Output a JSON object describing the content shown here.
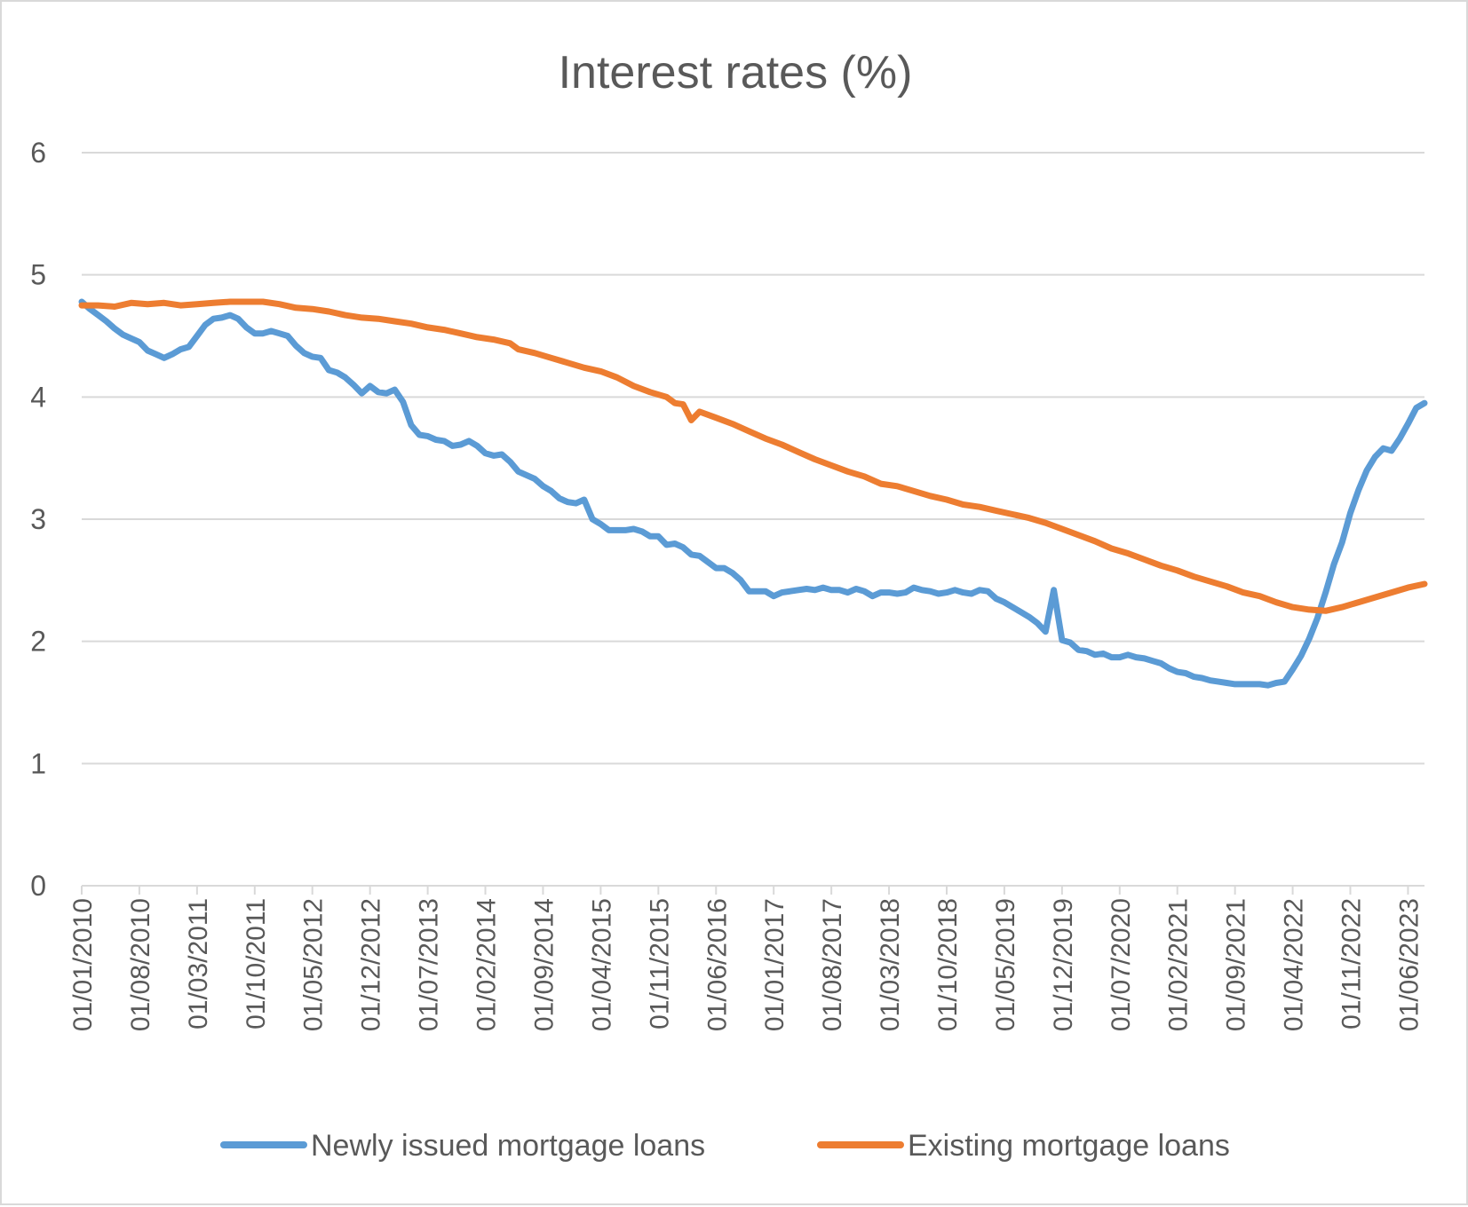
{
  "chart_data": {
    "type": "line",
    "title": "Interest rates (%)",
    "xlabel": "",
    "ylabel": "",
    "ylim": [
      0,
      6
    ],
    "yticks": [
      0,
      1,
      2,
      3,
      4,
      5,
      6
    ],
    "x_range": [
      "2010-01",
      "2023-08"
    ],
    "x_tick_labels": [
      "01/01/2010",
      "01/08/2010",
      "01/03/2011",
      "01/10/2011",
      "01/05/2012",
      "01/12/2012",
      "01/07/2013",
      "01/02/2014",
      "01/09/2014",
      "01/04/2015",
      "01/11/2015",
      "01/06/2016",
      "01/01/2017",
      "01/08/2017",
      "01/03/2018",
      "01/10/2018",
      "01/05/2019",
      "01/12/2019",
      "01/07/2020",
      "01/02/2021",
      "01/09/2021",
      "01/04/2022",
      "01/11/2022",
      "01/06/2023"
    ],
    "grid": "horizontal",
    "legend_position": "bottom",
    "series": [
      {
        "name": "Newly issued mortgage loans",
        "color": "#5b9bd5",
        "points": [
          [
            "2010-01",
            4.78
          ],
          [
            "2010-02",
            4.72
          ],
          [
            "2010-03",
            4.67
          ],
          [
            "2010-04",
            4.62
          ],
          [
            "2010-05",
            4.56
          ],
          [
            "2010-06",
            4.51
          ],
          [
            "2010-07",
            4.48
          ],
          [
            "2010-08",
            4.45
          ],
          [
            "2010-09",
            4.38
          ],
          [
            "2010-10",
            4.35
          ],
          [
            "2010-11",
            4.32
          ],
          [
            "2010-12",
            4.35
          ],
          [
            "2011-01",
            4.39
          ],
          [
            "2011-02",
            4.41
          ],
          [
            "2011-03",
            4.5
          ],
          [
            "2011-04",
            4.59
          ],
          [
            "2011-05",
            4.64
          ],
          [
            "2011-06",
            4.65
          ],
          [
            "2011-07",
            4.67
          ],
          [
            "2011-08",
            4.64
          ],
          [
            "2011-09",
            4.57
          ],
          [
            "2011-10",
            4.52
          ],
          [
            "2011-11",
            4.52
          ],
          [
            "2011-12",
            4.54
          ],
          [
            "2012-01",
            4.52
          ],
          [
            "2012-02",
            4.5
          ],
          [
            "2012-03",
            4.42
          ],
          [
            "2012-04",
            4.36
          ],
          [
            "2012-05",
            4.33
          ],
          [
            "2012-06",
            4.32
          ],
          [
            "2012-07",
            4.22
          ],
          [
            "2012-08",
            4.2
          ],
          [
            "2012-09",
            4.16
          ],
          [
            "2012-10",
            4.1
          ],
          [
            "2012-11",
            4.03
          ],
          [
            "2012-12",
            4.09
          ],
          [
            "2013-01",
            4.04
          ],
          [
            "2013-02",
            4.03
          ],
          [
            "2013-03",
            4.06
          ],
          [
            "2013-04",
            3.96
          ],
          [
            "2013-05",
            3.77
          ],
          [
            "2013-06",
            3.69
          ],
          [
            "2013-07",
            3.68
          ],
          [
            "2013-08",
            3.65
          ],
          [
            "2013-09",
            3.64
          ],
          [
            "2013-10",
            3.6
          ],
          [
            "2013-11",
            3.61
          ],
          [
            "2013-12",
            3.64
          ],
          [
            "2014-01",
            3.6
          ],
          [
            "2014-02",
            3.54
          ],
          [
            "2014-03",
            3.52
          ],
          [
            "2014-04",
            3.53
          ],
          [
            "2014-05",
            3.47
          ],
          [
            "2014-06",
            3.39
          ],
          [
            "2014-07",
            3.36
          ],
          [
            "2014-08",
            3.33
          ],
          [
            "2014-09",
            3.27
          ],
          [
            "2014-10",
            3.23
          ],
          [
            "2014-11",
            3.17
          ],
          [
            "2014-12",
            3.14
          ],
          [
            "2015-01",
            3.13
          ],
          [
            "2015-02",
            3.16
          ],
          [
            "2015-03",
            3.0
          ],
          [
            "2015-04",
            2.96
          ],
          [
            "2015-05",
            2.91
          ],
          [
            "2015-06",
            2.91
          ],
          [
            "2015-07",
            2.91
          ],
          [
            "2015-08",
            2.92
          ],
          [
            "2015-09",
            2.9
          ],
          [
            "2015-10",
            2.86
          ],
          [
            "2015-11",
            2.86
          ],
          [
            "2015-12",
            2.79
          ],
          [
            "2016-01",
            2.8
          ],
          [
            "2016-02",
            2.77
          ],
          [
            "2016-03",
            2.71
          ],
          [
            "2016-04",
            2.7
          ],
          [
            "2016-05",
            2.65
          ],
          [
            "2016-06",
            2.6
          ],
          [
            "2016-07",
            2.6
          ],
          [
            "2016-08",
            2.56
          ],
          [
            "2016-09",
            2.5
          ],
          [
            "2016-10",
            2.41
          ],
          [
            "2016-11",
            2.41
          ],
          [
            "2016-12",
            2.41
          ],
          [
            "2017-01",
            2.37
          ],
          [
            "2017-02",
            2.4
          ],
          [
            "2017-03",
            2.41
          ],
          [
            "2017-04",
            2.42
          ],
          [
            "2017-05",
            2.43
          ],
          [
            "2017-06",
            2.42
          ],
          [
            "2017-07",
            2.44
          ],
          [
            "2017-08",
            2.42
          ],
          [
            "2017-09",
            2.42
          ],
          [
            "2017-10",
            2.4
          ],
          [
            "2017-11",
            2.43
          ],
          [
            "2017-12",
            2.41
          ],
          [
            "2018-01",
            2.37
          ],
          [
            "2018-02",
            2.4
          ],
          [
            "2018-03",
            2.4
          ],
          [
            "2018-04",
            2.39
          ],
          [
            "2018-05",
            2.4
          ],
          [
            "2018-06",
            2.44
          ],
          [
            "2018-07",
            2.42
          ],
          [
            "2018-08",
            2.41
          ],
          [
            "2018-09",
            2.39
          ],
          [
            "2018-10",
            2.4
          ],
          [
            "2018-11",
            2.42
          ],
          [
            "2018-12",
            2.4
          ],
          [
            "2019-01",
            2.39
          ],
          [
            "2019-02",
            2.42
          ],
          [
            "2019-03",
            2.41
          ],
          [
            "2019-04",
            2.35
          ],
          [
            "2019-05",
            2.32
          ],
          [
            "2019-06",
            2.28
          ],
          [
            "2019-07",
            2.24
          ],
          [
            "2019-08",
            2.2
          ],
          [
            "2019-09",
            2.15
          ],
          [
            "2019-10",
            2.08
          ],
          [
            "2019-11",
            2.42
          ],
          [
            "2019-12",
            2.01
          ],
          [
            "2020-01",
            1.99
          ],
          [
            "2020-02",
            1.93
          ],
          [
            "2020-03",
            1.92
          ],
          [
            "2020-04",
            1.89
          ],
          [
            "2020-05",
            1.9
          ],
          [
            "2020-06",
            1.87
          ],
          [
            "2020-07",
            1.87
          ],
          [
            "2020-08",
            1.89
          ],
          [
            "2020-09",
            1.87
          ],
          [
            "2020-10",
            1.86
          ],
          [
            "2020-11",
            1.84
          ],
          [
            "2020-12",
            1.82
          ],
          [
            "2021-01",
            1.78
          ],
          [
            "2021-02",
            1.75
          ],
          [
            "2021-03",
            1.74
          ],
          [
            "2021-04",
            1.71
          ],
          [
            "2021-05",
            1.7
          ],
          [
            "2021-06",
            1.68
          ],
          [
            "2021-07",
            1.67
          ],
          [
            "2021-08",
            1.66
          ],
          [
            "2021-09",
            1.65
          ],
          [
            "2021-10",
            1.65
          ],
          [
            "2021-11",
            1.65
          ],
          [
            "2021-12",
            1.65
          ],
          [
            "2022-01",
            1.64
          ],
          [
            "2022-02",
            1.66
          ],
          [
            "2022-03",
            1.67
          ],
          [
            "2022-04",
            1.77
          ],
          [
            "2022-05",
            1.88
          ],
          [
            "2022-06",
            2.02
          ],
          [
            "2022-07",
            2.19
          ],
          [
            "2022-08",
            2.4
          ],
          [
            "2022-09",
            2.63
          ],
          [
            "2022-10",
            2.81
          ],
          [
            "2022-11",
            3.05
          ],
          [
            "2022-12",
            3.24
          ],
          [
            "2023-01",
            3.4
          ],
          [
            "2023-02",
            3.51
          ],
          [
            "2023-03",
            3.58
          ],
          [
            "2023-04",
            3.56
          ],
          [
            "2023-05",
            3.66
          ],
          [
            "2023-06",
            3.78
          ],
          [
            "2023-07",
            3.91
          ],
          [
            "2023-08",
            3.95
          ]
        ]
      },
      {
        "name": "Existing mortgage loans",
        "color": "#ed7d31",
        "points": [
          [
            "2010-01",
            4.75
          ],
          [
            "2010-03",
            4.75
          ],
          [
            "2010-05",
            4.74
          ],
          [
            "2010-07",
            4.77
          ],
          [
            "2010-09",
            4.76
          ],
          [
            "2010-11",
            4.77
          ],
          [
            "2011-01",
            4.75
          ],
          [
            "2011-03",
            4.76
          ],
          [
            "2011-05",
            4.77
          ],
          [
            "2011-07",
            4.78
          ],
          [
            "2011-09",
            4.78
          ],
          [
            "2011-11",
            4.78
          ],
          [
            "2012-01",
            4.76
          ],
          [
            "2012-03",
            4.73
          ],
          [
            "2012-05",
            4.72
          ],
          [
            "2012-07",
            4.7
          ],
          [
            "2012-09",
            4.67
          ],
          [
            "2012-11",
            4.65
          ],
          [
            "2013-01",
            4.64
          ],
          [
            "2013-03",
            4.62
          ],
          [
            "2013-05",
            4.6
          ],
          [
            "2013-07",
            4.57
          ],
          [
            "2013-09",
            4.55
          ],
          [
            "2013-11",
            4.52
          ],
          [
            "2014-01",
            4.49
          ],
          [
            "2014-03",
            4.47
          ],
          [
            "2014-05",
            4.44
          ],
          [
            "2014-06",
            4.39
          ],
          [
            "2014-08",
            4.36
          ],
          [
            "2014-10",
            4.32
          ],
          [
            "2014-12",
            4.28
          ],
          [
            "2015-02",
            4.24
          ],
          [
            "2015-04",
            4.21
          ],
          [
            "2015-06",
            4.16
          ],
          [
            "2015-08",
            4.09
          ],
          [
            "2015-10",
            4.04
          ],
          [
            "2015-12",
            4.0
          ],
          [
            "2016-01",
            3.95
          ],
          [
            "2016-02",
            3.94
          ],
          [
            "2016-03",
            3.81
          ],
          [
            "2016-04",
            3.88
          ],
          [
            "2016-06",
            3.83
          ],
          [
            "2016-08",
            3.78
          ],
          [
            "2016-10",
            3.72
          ],
          [
            "2016-12",
            3.66
          ],
          [
            "2017-02",
            3.61
          ],
          [
            "2017-04",
            3.55
          ],
          [
            "2017-06",
            3.49
          ],
          [
            "2017-08",
            3.44
          ],
          [
            "2017-10",
            3.39
          ],
          [
            "2017-12",
            3.35
          ],
          [
            "2018-02",
            3.29
          ],
          [
            "2018-04",
            3.27
          ],
          [
            "2018-06",
            3.23
          ],
          [
            "2018-08",
            3.19
          ],
          [
            "2018-10",
            3.16
          ],
          [
            "2018-12",
            3.12
          ],
          [
            "2019-02",
            3.1
          ],
          [
            "2019-04",
            3.07
          ],
          [
            "2019-06",
            3.04
          ],
          [
            "2019-08",
            3.01
          ],
          [
            "2019-10",
            2.97
          ],
          [
            "2019-12",
            2.92
          ],
          [
            "2020-02",
            2.87
          ],
          [
            "2020-04",
            2.82
          ],
          [
            "2020-06",
            2.76
          ],
          [
            "2020-08",
            2.72
          ],
          [
            "2020-10",
            2.67
          ],
          [
            "2020-12",
            2.62
          ],
          [
            "2021-02",
            2.58
          ],
          [
            "2021-04",
            2.53
          ],
          [
            "2021-06",
            2.49
          ],
          [
            "2021-08",
            2.45
          ],
          [
            "2021-10",
            2.4
          ],
          [
            "2021-12",
            2.37
          ],
          [
            "2022-02",
            2.32
          ],
          [
            "2022-04",
            2.28
          ],
          [
            "2022-06",
            2.26
          ],
          [
            "2022-08",
            2.25
          ],
          [
            "2022-10",
            2.28
          ],
          [
            "2022-12",
            2.32
          ],
          [
            "2023-02",
            2.36
          ],
          [
            "2023-04",
            2.4
          ],
          [
            "2023-06",
            2.44
          ],
          [
            "2023-08",
            2.47
          ]
        ]
      }
    ]
  }
}
